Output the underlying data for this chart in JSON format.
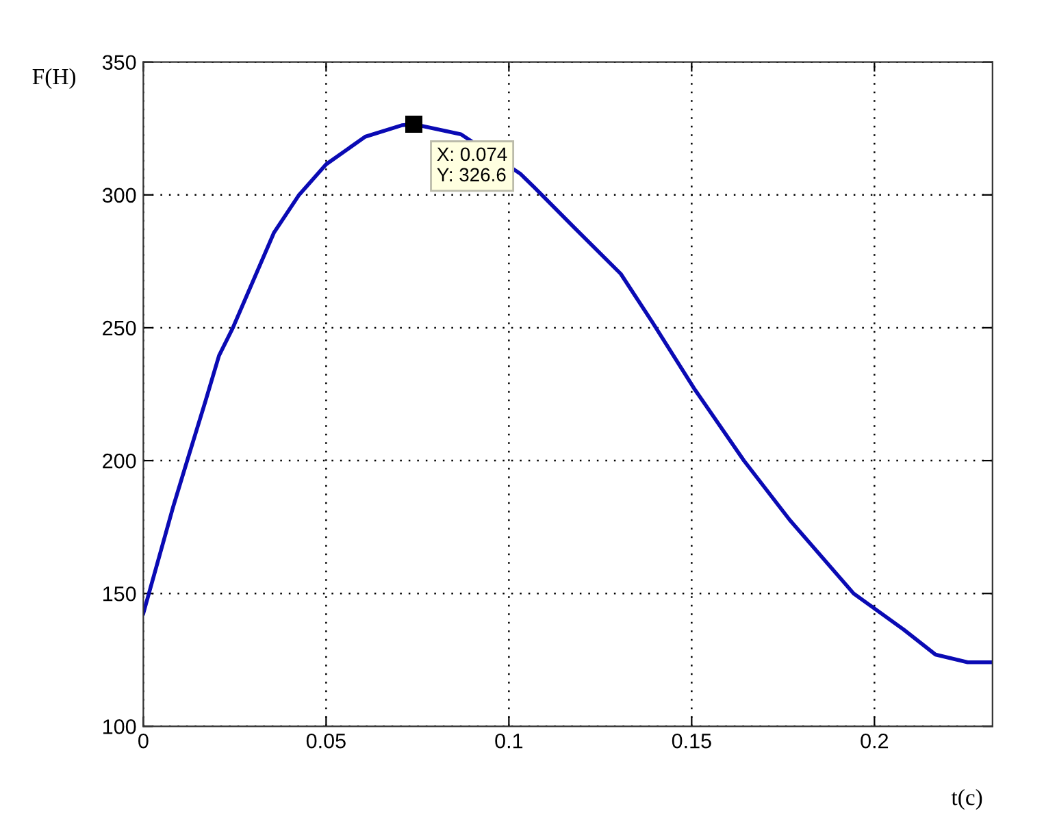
{
  "chart_data": {
    "type": "line",
    "xlabel": "t(c)",
    "ylabel": "F(H)",
    "xlim": [
      0,
      0.2323
    ],
    "ylim": [
      100,
      350
    ],
    "xticks": [
      0,
      0.05,
      0.1,
      0.15,
      0.2
    ],
    "yticks": [
      100,
      150,
      200,
      250,
      300,
      350
    ],
    "grid": true,
    "marker": "none",
    "line_style": "solid",
    "annotations": [
      {
        "text": "X: 0.074\nY: 326.6",
        "x": 0.074,
        "y": 326.6
      }
    ],
    "series": [
      {
        "color": "#0a0ab4",
        "x": [
          0,
          0.0082,
          0.012,
          0.017,
          0.0207,
          0.0245,
          0.0357,
          0.0426,
          0.05,
          0.0607,
          0.0707,
          0.074,
          0.0869,
          0.1031,
          0.1069,
          0.1181,
          0.1306,
          0.1393,
          0.1506,
          0.1643,
          0.1768,
          0.1943,
          0.208,
          0.2167,
          0.2255,
          0.2323
        ],
        "values": [
          142.5,
          182.8,
          200,
          222.4,
          239.5,
          250,
          285.7,
          300,
          311.5,
          321.9,
          326.2,
          326.6,
          322.8,
          308,
          302.9,
          287.4,
          270.3,
          252,
          227.3,
          200,
          177.7,
          150,
          136.4,
          127,
          124.1,
          124.1
        ]
      }
    ]
  }
}
